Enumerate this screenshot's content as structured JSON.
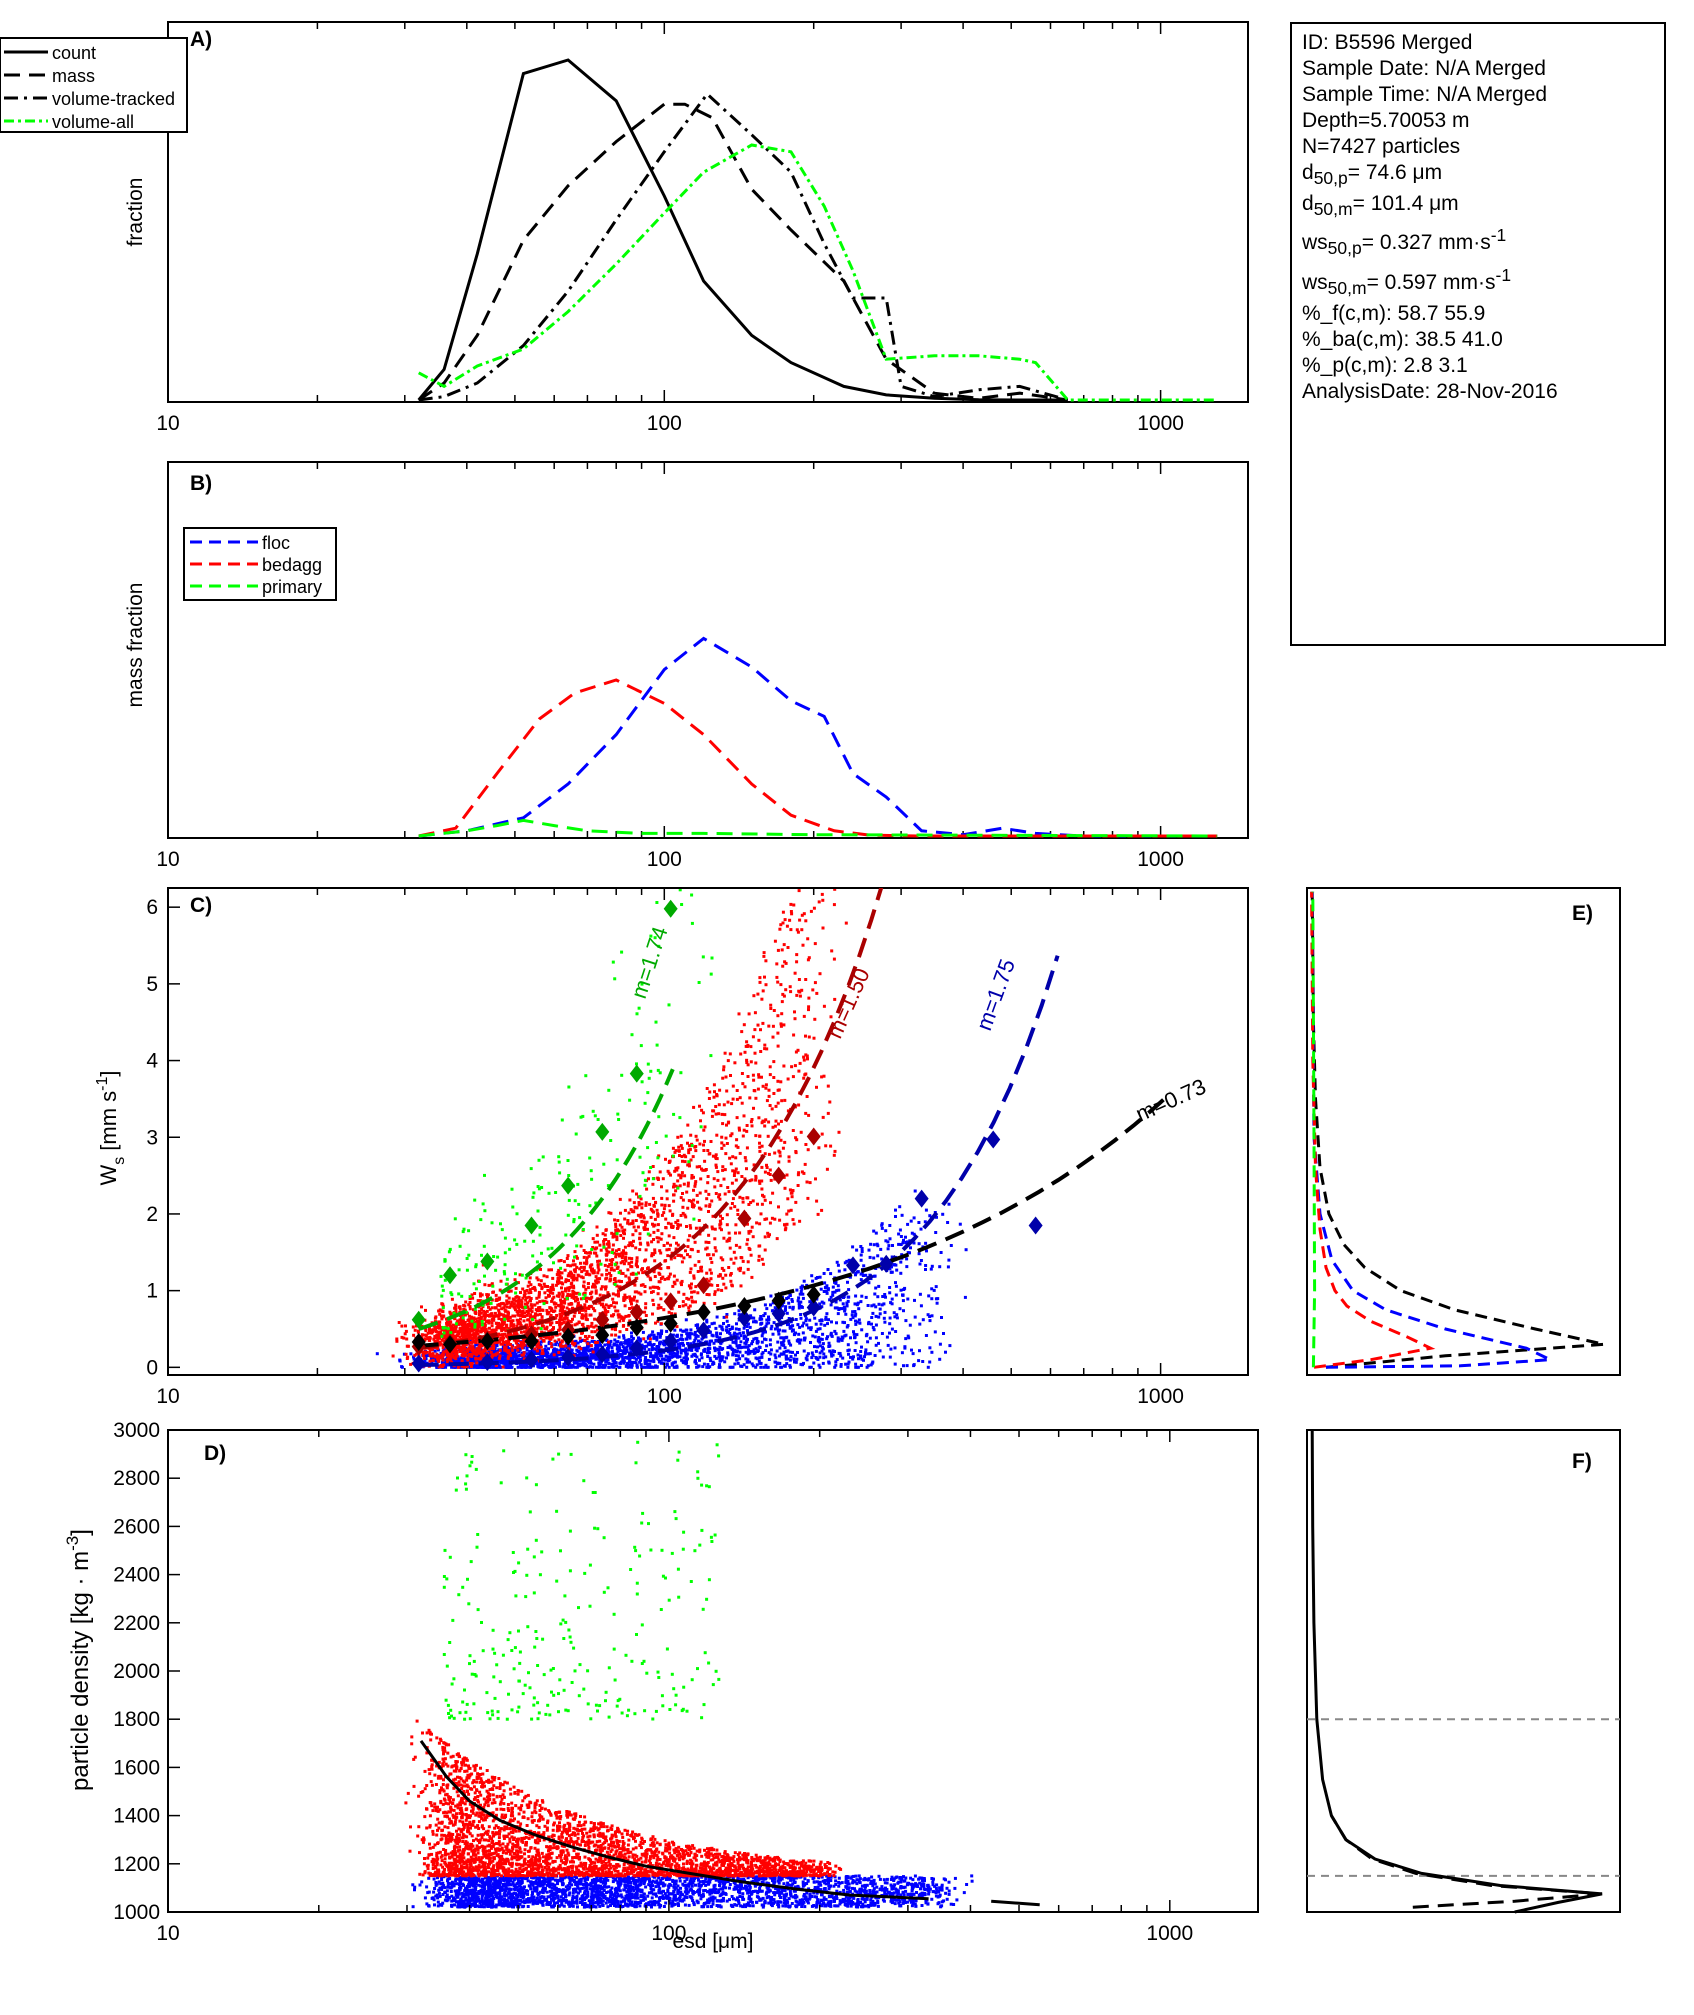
{
  "info": {
    "id": "ID: B5596 Merged",
    "sample_date": "Sample Date: N/A Merged",
    "sample_time": "Sample Time: N/A Merged",
    "depth": "Depth=5.70053 m",
    "n": "N=7427 particles",
    "d50p_label": "d",
    "d50p_sub": "50,p",
    "d50p_value": "= 74.6 μm",
    "d50m_label": "d",
    "d50m_sub": "50,m",
    "d50m_value": "= 101.4 μm",
    "ws50p_label": "ws",
    "ws50p_sub": "50,p",
    "ws50p_value": "= 0.327 mm·s",
    "ws50p_sup": "-1",
    "ws50m_label": "ws",
    "ws50m_sub": "50,m",
    "ws50m_value": "= 0.597 mm·s",
    "ws50m_sup": "-1",
    "pf": "%_f(c,m): 58.7 55.9",
    "pba": "%_ba(c,m): 38.5 41.0",
    "pp": "%_p(c,m): 2.8 3.1",
    "analysis_date": "AnalysisDate: 28-Nov-2016"
  },
  "colors": {
    "count": "#000000",
    "floc": "#0000ff",
    "bedagg": "#ff0000",
    "primary": "#00ff00",
    "fit_primary": "#00aa00",
    "fit_bedagg": "#aa0000",
    "fit_floc": "#0000aa",
    "fit_all": "#000000",
    "reference": "#888888"
  },
  "chart_data": [
    {
      "panel": "A",
      "type": "line",
      "panel_label": "A)",
      "ylabel": "fraction",
      "x_scale": "log",
      "xlim": [
        10,
        1500
      ],
      "ylim": [
        0,
        1
      ],
      "x_ticks": [
        10,
        100,
        1000
      ],
      "x_tick_labels": [
        "10",
        "100",
        "1000"
      ],
      "legend": {
        "placement": "top-left"
      },
      "series": [
        {
          "name": "count",
          "style": "solid",
          "color": "#000000",
          "x": [
            32,
            36,
            42,
            52,
            64,
            80,
            100,
            120,
            150,
            180,
            230,
            280,
            350,
            430,
            520,
            650
          ],
          "y": [
            0,
            0.09,
            0.43,
            0.96,
            1.0,
            0.88,
            0.6,
            0.35,
            0.19,
            0.11,
            0.04,
            0.015,
            0.005,
            0.001,
            0,
            0
          ]
        },
        {
          "name": "mass",
          "style": "dashed",
          "color": "#000000",
          "x": [
            32,
            36,
            42,
            52,
            64,
            80,
            100,
            110,
            125,
            150,
            180,
            230,
            280,
            350,
            430,
            520,
            650
          ],
          "y": [
            0,
            0.05,
            0.19,
            0.47,
            0.63,
            0.76,
            0.87,
            0.87,
            0.83,
            0.62,
            0.5,
            0.35,
            0.12,
            0.02,
            0.005,
            0.02,
            0
          ]
        },
        {
          "name": "volume-tracked",
          "style": "dashdot",
          "color": "#000000",
          "x": [
            32,
            36,
            42,
            52,
            64,
            80,
            100,
            122,
            150,
            180,
            210,
            240,
            280,
            300,
            350,
            430,
            520,
            650
          ],
          "y": [
            0,
            0.01,
            0.05,
            0.16,
            0.32,
            0.53,
            0.73,
            0.9,
            0.78,
            0.67,
            0.46,
            0.3,
            0.3,
            0.04,
            0.01,
            0.03,
            0.04,
            0
          ]
        },
        {
          "name": "volume-all",
          "style": "dashdotted-green",
          "color": "#00ff00",
          "x": [
            32,
            36,
            42,
            52,
            64,
            80,
            100,
            120,
            150,
            180,
            210,
            240,
            280,
            350,
            430,
            520,
            560,
            650,
            1300
          ],
          "y": [
            0.08,
            0.04,
            0.1,
            0.15,
            0.26,
            0.4,
            0.55,
            0.67,
            0.75,
            0.73,
            0.57,
            0.38,
            0.12,
            0.13,
            0.13,
            0.12,
            0.11,
            0,
            0
          ]
        }
      ]
    },
    {
      "panel": "B",
      "type": "line",
      "panel_label": "B)",
      "ylabel": "mass fraction",
      "x_scale": "log",
      "xlim": [
        10,
        1500
      ],
      "ylim": [
        0,
        1
      ],
      "x_ticks": [
        10,
        100,
        1000
      ],
      "x_tick_labels": [
        "10",
        "100",
        "1000"
      ],
      "legend": {
        "placement": "top-left"
      },
      "series": [
        {
          "name": "floc",
          "style": "dashed",
          "color": "#0000ff",
          "x": [
            32,
            40,
            52,
            64,
            80,
            100,
            120,
            150,
            180,
            210,
            240,
            280,
            330,
            400,
            480,
            560,
            700,
            1300
          ],
          "y": [
            0,
            0.02,
            0.07,
            0.2,
            0.39,
            0.64,
            0.76,
            0.65,
            0.52,
            0.46,
            0.24,
            0.15,
            0.02,
            0.005,
            0.03,
            0.01,
            0,
            0
          ]
        },
        {
          "name": "bedagg",
          "style": "dashed",
          "color": "#ff0000",
          "x": [
            32,
            38,
            46,
            56,
            66,
            80,
            100,
            120,
            150,
            180,
            220,
            260,
            330,
            400,
            1300
          ],
          "y": [
            0,
            0.03,
            0.24,
            0.45,
            0.55,
            0.6,
            0.51,
            0.39,
            0.2,
            0.08,
            0.02,
            0.003,
            0,
            0,
            0
          ]
        },
        {
          "name": "primary",
          "style": "dashed",
          "color": "#00ff00",
          "x": [
            32,
            40,
            46,
            52,
            60,
            70,
            90,
            120,
            200,
            1300
          ],
          "y": [
            0,
            0.02,
            0.04,
            0.06,
            0.04,
            0.02,
            0.01,
            0.01,
            0.005,
            0
          ]
        }
      ]
    },
    {
      "panel": "C",
      "type": "scatter",
      "panel_label": "C)",
      "ylabel": "W",
      "ylabel_sub": "s",
      "ylabel_unit": "[mm s",
      "ylabel_unit_sup": "-1",
      "ylabel_unit_end": "]",
      "x_scale": "log",
      "xlim": [
        10,
        1500
      ],
      "ylim": [
        -0.1,
        6.25
      ],
      "x_ticks": [
        10,
        100,
        1000
      ],
      "x_tick_labels": [
        "10",
        "100",
        "1000"
      ],
      "y_ticks": [
        0,
        1,
        2,
        3,
        4,
        5,
        6
      ],
      "y_tick_labels": [
        "0",
        "1",
        "2",
        "3",
        "4",
        "5",
        "6"
      ],
      "binned_means": [
        {
          "group": "primary",
          "color": "#00aa00",
          "x": [
            32,
            37,
            44,
            54,
            64,
            75,
            88,
            103
          ],
          "y": [
            0.62,
            1.2,
            1.38,
            1.85,
            2.37,
            3.07,
            3.83,
            5.98
          ]
        },
        {
          "group": "bedagg",
          "color": "#aa0000",
          "x": [
            32,
            37,
            44,
            54,
            64,
            75,
            88,
            103,
            120,
            145,
            170,
            200
          ],
          "y": [
            0.27,
            0.32,
            0.36,
            0.43,
            0.49,
            0.62,
            0.72,
            0.86,
            1.07,
            1.94,
            2.5,
            3.01
          ]
        },
        {
          "group": "floc",
          "color": "#0000aa",
          "x": [
            32,
            44,
            54,
            64,
            75,
            88,
            103,
            120,
            145,
            170,
            200,
            240,
            280,
            330,
            460,
            560
          ],
          "y": [
            0.05,
            0.07,
            0.1,
            0.13,
            0.17,
            0.25,
            0.34,
            0.48,
            0.64,
            0.7,
            0.78,
            1.33,
            1.35,
            2.2,
            2.97,
            1.85
          ]
        },
        {
          "group": "all",
          "color": "#000000",
          "x": [
            32,
            37,
            44,
            54,
            64,
            75,
            88,
            103,
            120,
            145,
            170,
            200
          ],
          "y": [
            0.33,
            0.3,
            0.34,
            0.34,
            0.4,
            0.42,
            0.52,
            0.57,
            0.72,
            0.8,
            0.87,
            0.95
          ]
        }
      ],
      "fits": [
        {
          "label": "m=1.74",
          "color": "#00aa00",
          "m": 1.74,
          "x0": 32,
          "y0": 0.5,
          "x_end": 104
        },
        {
          "label": "m=1.50",
          "color": "#aa0000",
          "m": 1.5,
          "x0": 32,
          "y0": 0.25,
          "x_end": 330
        },
        {
          "label": "m=1.75",
          "color": "#0000aa",
          "m": 1.75,
          "x0": 32,
          "y0": 0.03,
          "x_end": 620
        },
        {
          "label": "m=0.73",
          "color": "#000000",
          "m": 0.73,
          "x0": 32,
          "y0": 0.28,
          "x_end": 1050
        }
      ]
    },
    {
      "panel": "D",
      "type": "scatter",
      "panel_label": "D)",
      "xlabel": "esd [μm]",
      "ylabel": "particle density [kg · m",
      "ylabel_sup": "-3",
      "ylabel_end": "]",
      "x_scale": "log",
      "xlim": [
        10,
        1500
      ],
      "ylim": [
        1000,
        3000
      ],
      "x_ticks": [
        10,
        100,
        1000
      ],
      "x_tick_labels": [
        "10",
        "100",
        "1000"
      ],
      "y_ticks": [
        1000,
        1200,
        1400,
        1600,
        1800,
        2000,
        2200,
        2400,
        2600,
        2800,
        3000
      ],
      "y_tick_labels": [
        "1000",
        "1200",
        "1400",
        "1600",
        "1800",
        "2000",
        "2200",
        "2400",
        "2600",
        "2800",
        "3000"
      ],
      "mean_curve": {
        "x": [
          32,
          36,
          40,
          46,
          54,
          64,
          75,
          90,
          110,
          140,
          180,
          230,
          330
        ],
        "y": [
          1710,
          1560,
          1460,
          1380,
          1320,
          1270,
          1230,
          1190,
          1160,
          1125,
          1095,
          1070,
          1055
        ]
      },
      "tail_segment": {
        "x": [
          440,
          550
        ],
        "y": [
          1045,
          1030
        ]
      }
    },
    {
      "panel": "E",
      "type": "line",
      "panel_label": "E)",
      "ylim": [
        -0.1,
        6.25
      ],
      "series": [
        {
          "name": "all",
          "style": "dashed",
          "color": "#000000",
          "y": [
            0,
            0.15,
            0.3,
            0.5,
            0.75,
            1.0,
            1.3,
            1.6,
            2.0,
            2.6,
            3.5,
            4.5,
            6.2
          ],
          "x": [
            0.05,
            0.45,
            0.98,
            0.75,
            0.48,
            0.3,
            0.18,
            0.11,
            0.06,
            0.03,
            0.015,
            0.008,
            0.004
          ]
        },
        {
          "name": "floc",
          "style": "dashed",
          "color": "#0000ff",
          "y": [
            0,
            0.02,
            0.1,
            0.25,
            0.5,
            0.75,
            1.0,
            1.4,
            2.0,
            3.0,
            6.2
          ],
          "x": [
            0.05,
            0.5,
            0.8,
            0.72,
            0.45,
            0.25,
            0.14,
            0.07,
            0.03,
            0.01,
            0.003
          ]
        },
        {
          "name": "bedagg",
          "style": "dashed",
          "color": "#ff0000",
          "y": [
            0,
            0.1,
            0.25,
            0.4,
            0.6,
            0.8,
            1.0,
            1.3,
            1.8,
            2.6,
            4,
            6.2
          ],
          "x": [
            0.01,
            0.2,
            0.4,
            0.32,
            0.2,
            0.12,
            0.08,
            0.05,
            0.03,
            0.015,
            0.006,
            0.002
          ]
        },
        {
          "name": "primary",
          "style": "dashed",
          "color": "#00ff00",
          "y": [
            0,
            1,
            3,
            6.2
          ],
          "x": [
            0.008,
            0.012,
            0.01,
            0.006
          ]
        }
      ]
    },
    {
      "panel": "F",
      "type": "line",
      "panel_label": "F)",
      "ylim": [
        1000,
        3000
      ],
      "reference_lines": [
        1800,
        1150
      ],
      "series": [
        {
          "name": "all",
          "style": "solid",
          "color": "#000000",
          "y": [
            1000,
            1040,
            1075,
            1110,
            1160,
            1220,
            1300,
            1400,
            1550,
            1800,
            2200,
            2600,
            3000
          ],
          "x": [
            0.7,
            0.85,
            1.0,
            0.65,
            0.38,
            0.22,
            0.12,
            0.07,
            0.04,
            0.02,
            0.01,
            0.006,
            0.004
          ]
        },
        {
          "name": "mass",
          "style": "dashed",
          "color": "#000000",
          "y": [
            1020,
            1045,
            1075,
            1110,
            1160,
            1220,
            1300,
            1400
          ],
          "x": [
            0.35,
            0.7,
            1.0,
            0.62,
            0.36,
            0.21,
            0.12,
            0.07
          ]
        }
      ]
    }
  ]
}
